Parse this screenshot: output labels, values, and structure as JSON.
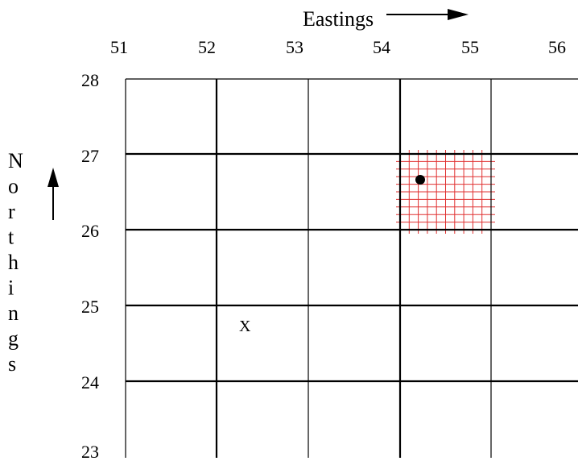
{
  "axes": {
    "x_title": "Eastings",
    "y_title": "Northings",
    "x_ticks": [
      "51",
      "52",
      "53",
      "54",
      "55",
      "56"
    ],
    "y_ticks": [
      "28",
      "27",
      "26",
      "25",
      "24",
      "23"
    ]
  },
  "grid": {
    "eastings": [
      51,
      52,
      53,
      54,
      55,
      56
    ],
    "northings": [
      28,
      27,
      26,
      25,
      24,
      23
    ],
    "fine_square": {
      "easting": 54,
      "northing": 26,
      "divisions": 10,
      "color": "#e03030"
    }
  },
  "markers": {
    "dot": {
      "easting": 54.24,
      "northing": 26.66
    },
    "cross": {
      "label": "X",
      "easting": 52.38,
      "northing": 24.8
    }
  },
  "colors": {
    "grid": "#000000",
    "fine_grid": "#e03030",
    "dot": "#000000"
  }
}
